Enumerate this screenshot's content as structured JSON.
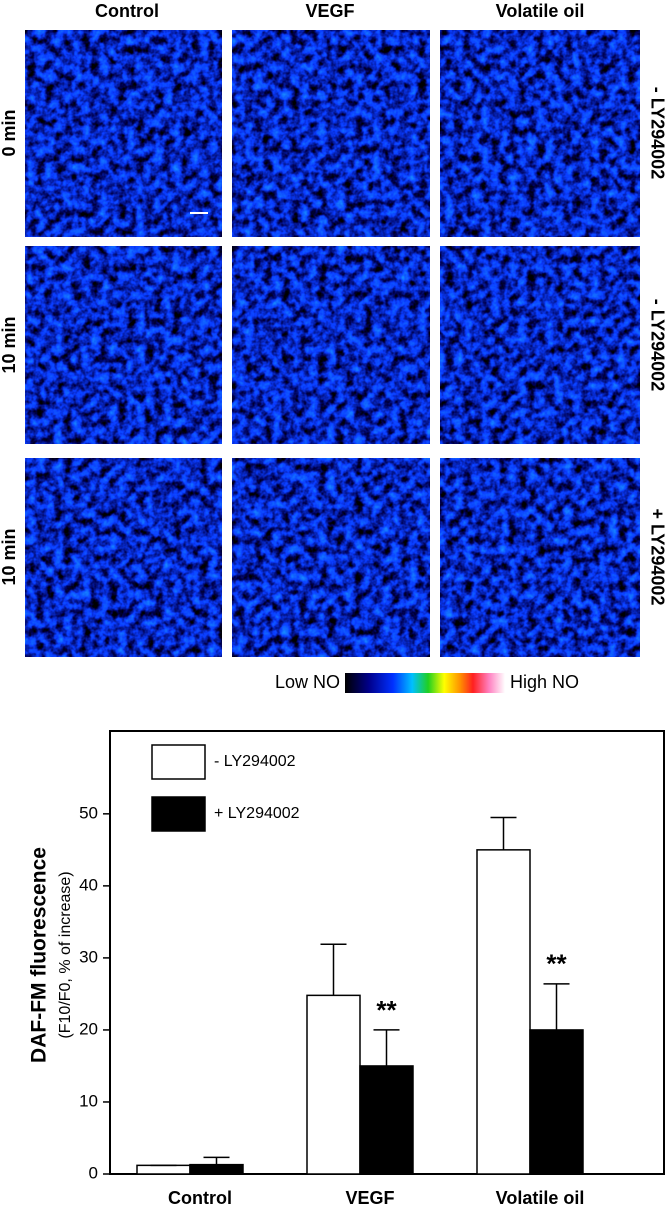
{
  "panels": {
    "columns": [
      "Control",
      "VEGF",
      "Volatile oil"
    ],
    "rows": [
      "0 min",
      "10 min",
      "10 min"
    ],
    "treatments": [
      "- LY294002",
      "- LY294002",
      "+ LY294002"
    ],
    "colorbar": {
      "low": "Low NO",
      "high": "High NO"
    }
  },
  "chart_data": {
    "type": "bar",
    "ylabel": "DAF-FM fluorescence",
    "ylabel_sub": "(F10/F0, % of increase)",
    "categories": [
      "Control",
      "VEGF",
      "Volatile oil"
    ],
    "series": [
      {
        "name": "- LY294002",
        "color": "#ffffff",
        "values": [
          1.2,
          24.8,
          45.0
        ],
        "errors": [
          0,
          7.1,
          4.5
        ],
        "significance": [
          null,
          null,
          null
        ]
      },
      {
        "name": "+ LY294002",
        "color": "#000000",
        "values": [
          1.3,
          15.0,
          20.0
        ],
        "errors": [
          1.0,
          5.0,
          6.4
        ],
        "significance": [
          null,
          "**",
          "**"
        ]
      }
    ],
    "ylim": [
      0,
      61.5
    ],
    "yticks": [
      0,
      10,
      20,
      30,
      40,
      50
    ],
    "grid": false,
    "legend": "upper left"
  }
}
